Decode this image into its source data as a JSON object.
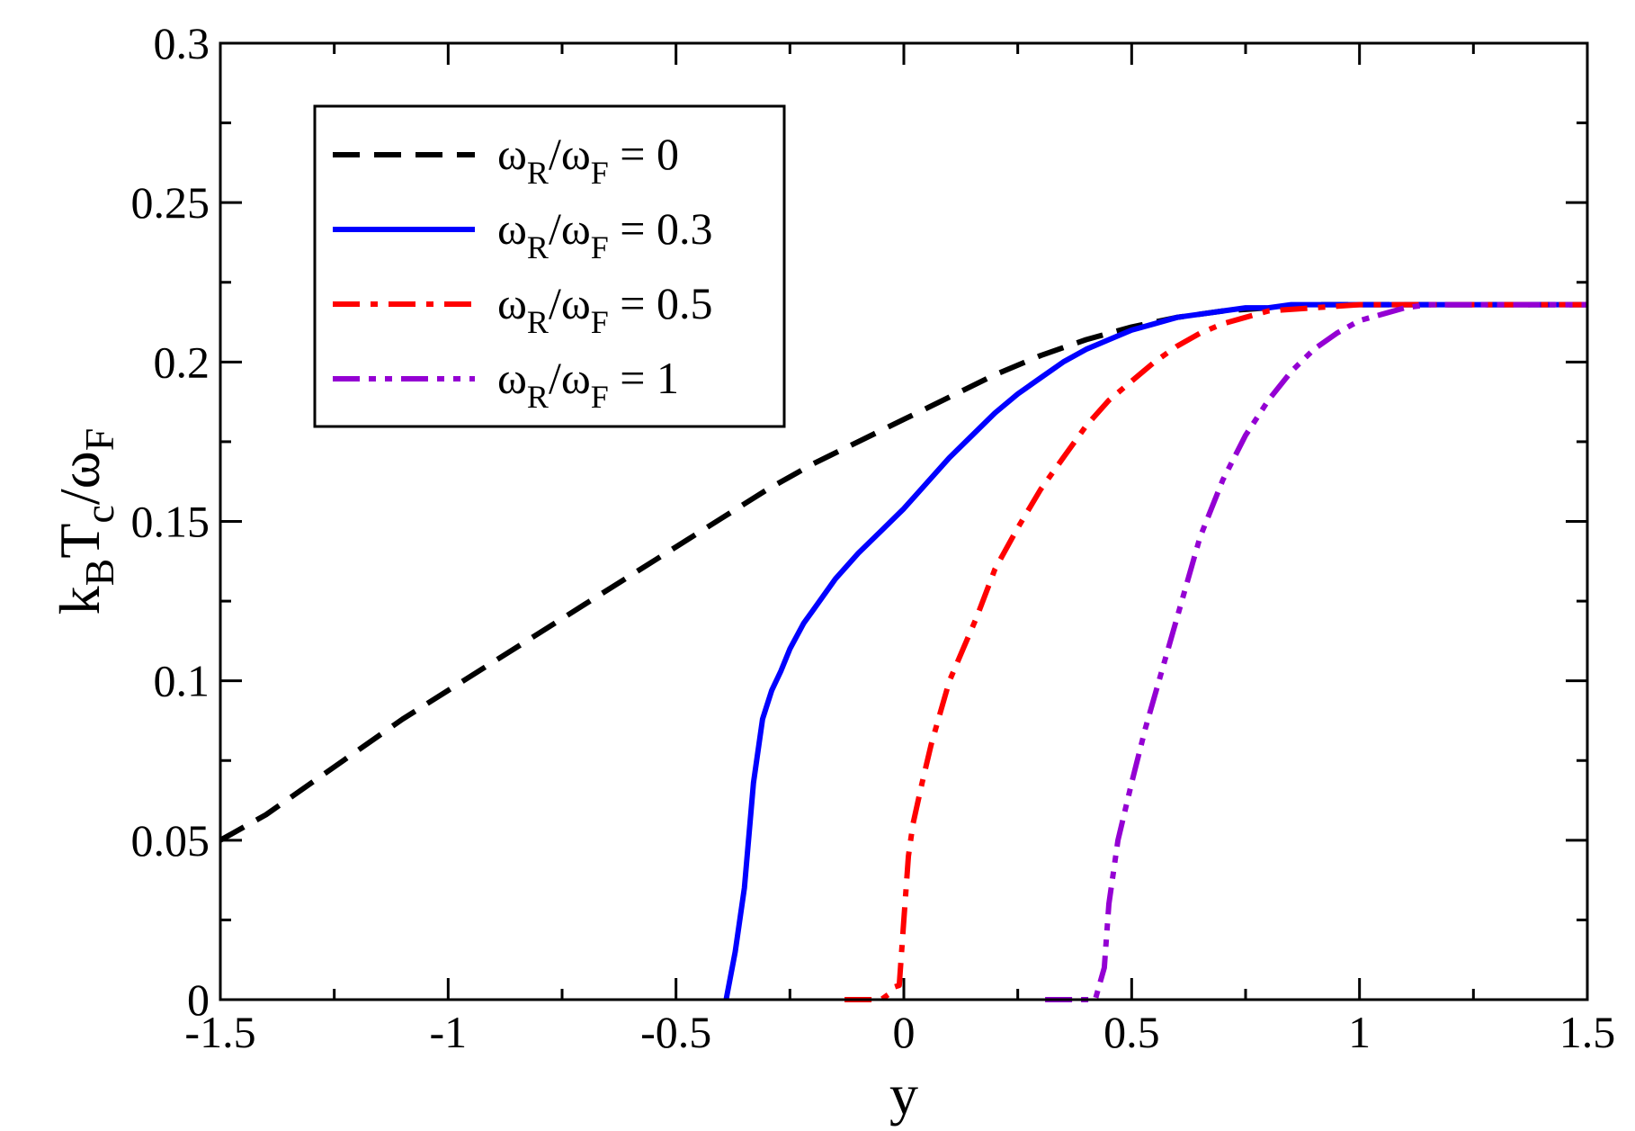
{
  "chart_data": {
    "type": "line",
    "xlabel": "y",
    "ylabel": {
      "parts": [
        "k",
        "B",
        "T",
        "c",
        "/ω",
        "F"
      ],
      "text": "kBTc/ωF"
    },
    "xlim": [
      -1.5,
      1.5
    ],
    "ylim": [
      0,
      0.3
    ],
    "x_ticks": [
      -1.5,
      -1,
      -0.5,
      0,
      0.5,
      1,
      1.5
    ],
    "x_tick_labels": [
      "-1.5",
      "-1",
      "-0.5",
      "0",
      "0.5",
      "1",
      "1.5"
    ],
    "y_ticks": [
      0,
      0.05,
      0.1,
      0.15,
      0.2,
      0.25,
      0.3
    ],
    "y_tick_labels": [
      "0",
      "0.05",
      "0.1",
      "0.15",
      "0.2",
      "0.25",
      "0.3"
    ],
    "grid": false,
    "legend_position": "top-left",
    "series": [
      {
        "legend": {
          "parts": [
            "ω",
            "R",
            "/ω",
            "F",
            " = 0"
          ]
        },
        "color": "#000000",
        "dash": "dashed",
        "x": [
          -1.5,
          -1.4,
          -1.3,
          -1.2,
          -1.1,
          -1.0,
          -0.9,
          -0.8,
          -0.7,
          -0.6,
          -0.5,
          -0.4,
          -0.3,
          -0.2,
          -0.1,
          0.0,
          0.1,
          0.2,
          0.3,
          0.4,
          0.5,
          0.6,
          0.7,
          0.8,
          0.9,
          1.0,
          1.1,
          1.2,
          1.3,
          1.4,
          1.5
        ],
        "y": [
          0.05,
          0.058,
          0.068,
          0.078,
          0.088,
          0.097,
          0.106,
          0.115,
          0.124,
          0.133,
          0.142,
          0.151,
          0.16,
          0.168,
          0.175,
          0.182,
          0.189,
          0.196,
          0.202,
          0.207,
          0.211,
          0.214,
          0.216,
          0.217,
          0.218,
          0.218,
          0.218,
          0.218,
          0.218,
          0.218,
          0.218
        ]
      },
      {
        "legend": {
          "parts": [
            "ω",
            "R",
            "/ω",
            "F",
            " = 0.3"
          ]
        },
        "color": "#0000ff",
        "dash": "solid",
        "x": [
          -0.39,
          -0.37,
          -0.35,
          -0.33,
          -0.31,
          -0.29,
          -0.27,
          -0.25,
          -0.22,
          -0.2,
          -0.15,
          -0.1,
          -0.05,
          0.0,
          0.05,
          0.1,
          0.15,
          0.2,
          0.25,
          0.3,
          0.35,
          0.4,
          0.45,
          0.5,
          0.55,
          0.6,
          0.65,
          0.7,
          0.75,
          0.8,
          0.85,
          0.9,
          1.0,
          1.1,
          1.2,
          1.3,
          1.4,
          1.5
        ],
        "y": [
          0.0,
          0.015,
          0.035,
          0.068,
          0.088,
          0.097,
          0.103,
          0.11,
          0.118,
          0.122,
          0.132,
          0.14,
          0.147,
          0.154,
          0.162,
          0.17,
          0.177,
          0.184,
          0.19,
          0.195,
          0.2,
          0.204,
          0.207,
          0.21,
          0.212,
          0.214,
          0.215,
          0.216,
          0.217,
          0.217,
          0.218,
          0.218,
          0.218,
          0.218,
          0.218,
          0.218,
          0.218,
          0.218
        ]
      },
      {
        "legend": {
          "parts": [
            "ω",
            "R",
            "/ω",
            "F",
            " = 0.5"
          ]
        },
        "color": "#ff0000",
        "dash": "dash-dot",
        "x": [
          -0.13,
          -0.05,
          -0.03,
          -0.02,
          -0.01,
          0.0,
          0.01,
          0.02,
          0.04,
          0.06,
          0.08,
          0.1,
          0.13,
          0.16,
          0.2,
          0.25,
          0.3,
          0.35,
          0.4,
          0.45,
          0.5,
          0.55,
          0.6,
          0.65,
          0.7,
          0.75,
          0.8,
          0.9,
          1.0,
          1.1,
          1.2,
          1.3,
          1.4,
          1.5
        ],
        "y": [
          0.0,
          0.0,
          0.002,
          0.004,
          0.0045,
          0.025,
          0.045,
          0.055,
          0.068,
          0.08,
          0.09,
          0.1,
          0.11,
          0.12,
          0.135,
          0.148,
          0.16,
          0.17,
          0.18,
          0.188,
          0.194,
          0.2,
          0.205,
          0.209,
          0.212,
          0.214,
          0.216,
          0.217,
          0.218,
          0.218,
          0.218,
          0.218,
          0.218,
          0.218
        ]
      },
      {
        "legend": {
          "parts": [
            "ω",
            "R",
            "/ω",
            "F",
            " = 1"
          ]
        },
        "color": "#9400d3",
        "dash": "dash-dot-dot",
        "x": [
          0.31,
          0.42,
          0.44,
          0.45,
          0.47,
          0.5,
          0.53,
          0.56,
          0.6,
          0.65,
          0.7,
          0.75,
          0.8,
          0.85,
          0.9,
          0.95,
          1.0,
          1.05,
          1.1,
          1.15,
          1.2,
          1.3,
          1.4,
          1.5
        ],
        "y": [
          0.0,
          0.0,
          0.01,
          0.03,
          0.05,
          0.068,
          0.085,
          0.1,
          0.12,
          0.145,
          0.163,
          0.177,
          0.188,
          0.197,
          0.204,
          0.209,
          0.213,
          0.215,
          0.217,
          0.218,
          0.218,
          0.218,
          0.218,
          0.218
        ]
      }
    ]
  }
}
